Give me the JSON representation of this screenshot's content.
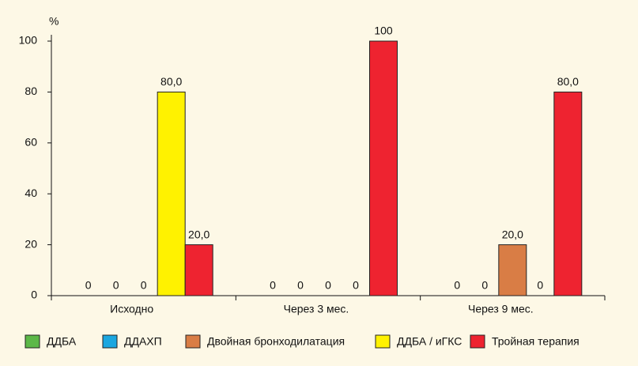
{
  "chart_data": {
    "type": "bar",
    "y_label": "%",
    "categories": [
      "Исходно",
      "Через 3 мес.",
      "Через 9 мес."
    ],
    "series": [
      {
        "name": "ДДБА",
        "color": "#5cb848",
        "values": [
          0,
          0,
          0
        ],
        "value_labels": [
          "0",
          "0",
          "0"
        ]
      },
      {
        "name": "ДДАХП",
        "color": "#1ba7e0",
        "values": [
          0,
          0,
          0
        ],
        "value_labels": [
          "0",
          "0",
          "0"
        ]
      },
      {
        "name": "Двойная бронходилатация",
        "color": "#d97d45",
        "values": [
          0,
          0,
          20
        ],
        "value_labels": [
          "0",
          "0",
          "20,0"
        ]
      },
      {
        "name": "ДДБА / иГКС",
        "color": "#fff200",
        "values": [
          80,
          0,
          0
        ],
        "value_labels": [
          "80,0",
          "0",
          "0"
        ]
      },
      {
        "name": "Тройная терапия",
        "color": "#ee2330",
        "values": [
          20,
          100,
          80
        ],
        "value_labels": [
          "20,0",
          "100",
          "80,0"
        ]
      }
    ],
    "ylim": [
      0,
      100
    ],
    "yticks": [
      0,
      20,
      40,
      60,
      80,
      100
    ]
  }
}
